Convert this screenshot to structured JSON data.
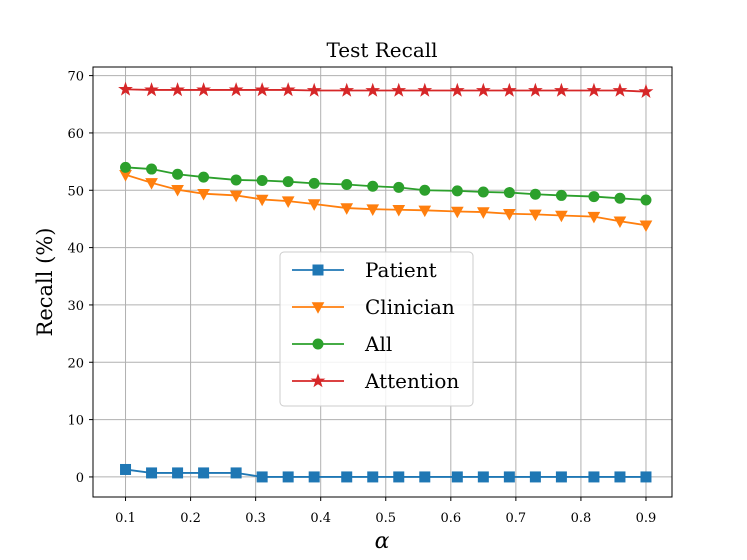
{
  "chart_data": {
    "type": "line",
    "title": "Test Recall",
    "xlabel": "α",
    "ylabel": "Recall (%)",
    "x": [
      0.1,
      0.14,
      0.18,
      0.22,
      0.27,
      0.31,
      0.35,
      0.39,
      0.44,
      0.48,
      0.52,
      0.56,
      0.61,
      0.65,
      0.69,
      0.73,
      0.77,
      0.82,
      0.86,
      0.9
    ],
    "xlim": [
      0.05,
      0.94
    ],
    "ylim": [
      -3.5,
      71.5
    ],
    "xticks": [
      0.1,
      0.2,
      0.3,
      0.4,
      0.5,
      0.6,
      0.7,
      0.8,
      0.9
    ],
    "xtick_labels": [
      "0.1",
      "0.2",
      "0.3",
      "0.4",
      "0.5",
      "0.6",
      "0.7",
      "0.8",
      "0.9"
    ],
    "yticks": [
      0,
      10,
      20,
      30,
      40,
      50,
      60,
      70
    ],
    "ytick_labels": [
      "0",
      "10",
      "20",
      "30",
      "40",
      "50",
      "60",
      "70"
    ],
    "grid": true,
    "legend_position": "center",
    "series": [
      {
        "name": "Patient",
        "color": "#1f77b4",
        "marker": "square",
        "values": [
          1.3,
          0.7,
          0.7,
          0.7,
          0.7,
          0,
          0,
          0,
          0,
          0,
          0,
          0,
          0,
          0,
          0,
          0,
          0,
          0,
          0,
          0
        ]
      },
      {
        "name": "Clinician",
        "color": "#ff7f0e",
        "marker": "triangle-down",
        "values": [
          52.7,
          51.3,
          50.1,
          49.4,
          49.1,
          48.4,
          48.1,
          47.6,
          46.9,
          46.7,
          46.6,
          46.5,
          46.3,
          46.2,
          45.9,
          45.8,
          45.6,
          45.4,
          44.6,
          43.9
        ]
      },
      {
        "name": "All",
        "color": "#2ca02c",
        "marker": "circle",
        "values": [
          54.0,
          53.7,
          52.8,
          52.3,
          51.8,
          51.7,
          51.5,
          51.2,
          51.0,
          50.7,
          50.5,
          50.0,
          49.9,
          49.7,
          49.6,
          49.3,
          49.1,
          48.9,
          48.6,
          48.3
        ]
      },
      {
        "name": "Attention",
        "color": "#d62728",
        "marker": "star",
        "values": [
          67.6,
          67.5,
          67.5,
          67.5,
          67.5,
          67.5,
          67.5,
          67.4,
          67.4,
          67.4,
          67.4,
          67.4,
          67.4,
          67.4,
          67.4,
          67.4,
          67.4,
          67.4,
          67.4,
          67.2
        ]
      }
    ]
  }
}
